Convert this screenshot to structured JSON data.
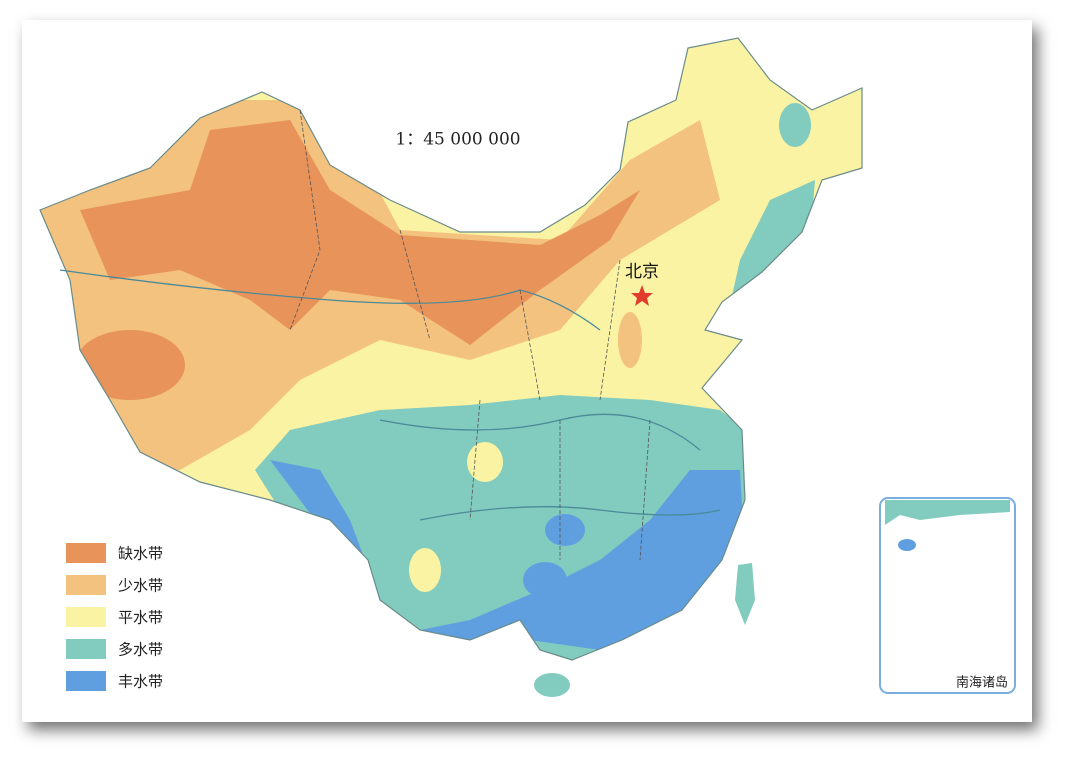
{
  "scale": "1：45 000 000",
  "capital": "北京",
  "inset_title": "南海诸岛",
  "legend": [
    {
      "label": "缺水带",
      "color": "#e8935a"
    },
    {
      "label": "少水带",
      "color": "#f3c27e"
    },
    {
      "label": "平水带",
      "color": "#fbf3a4"
    },
    {
      "label": "多水带",
      "color": "#82cbbf"
    },
    {
      "label": "丰水带",
      "color": "#5f9fe0"
    }
  ]
}
